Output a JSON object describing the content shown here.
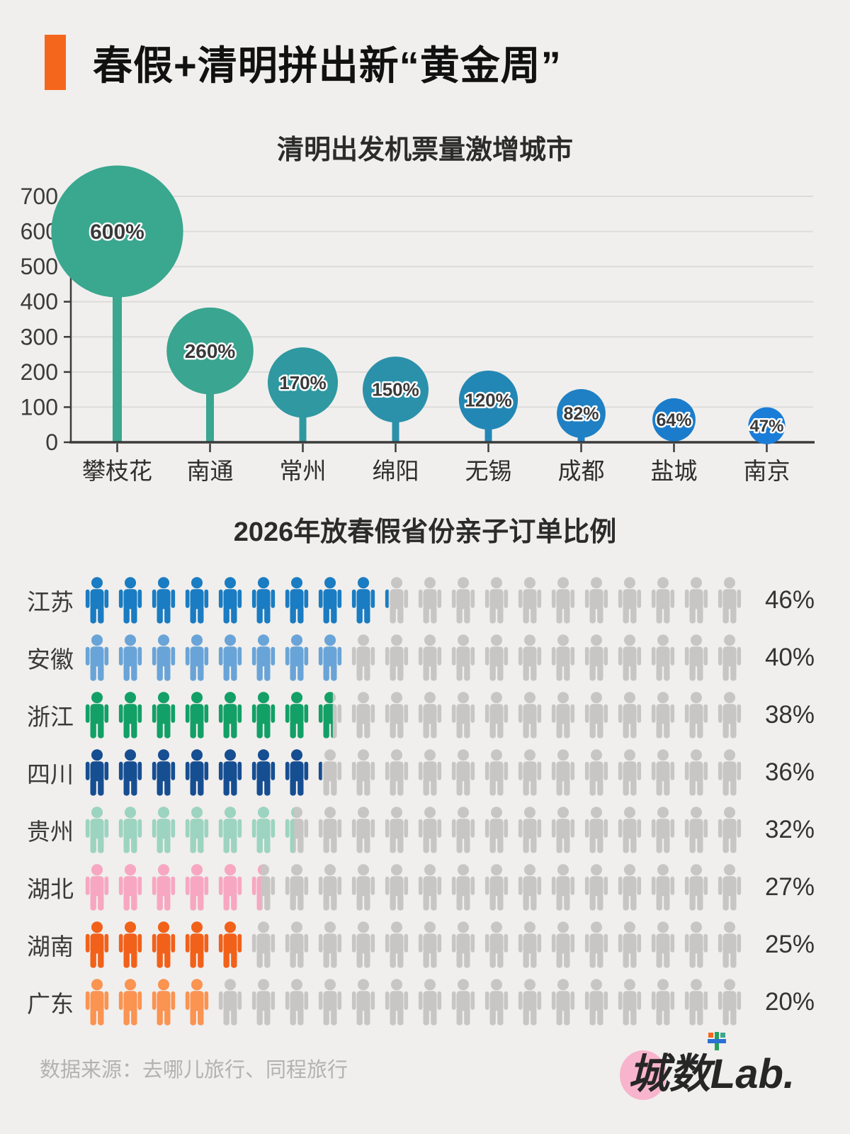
{
  "page": {
    "background": "#f0efed",
    "accent_color": "#f5661d"
  },
  "header": {
    "title": "春假+清明拼出新“黄金周”"
  },
  "chart_data": [
    {
      "type": "bar",
      "subtype": "lollipop-bubble",
      "title": "清明出发机票量激增城市",
      "categories": [
        "攀枝花",
        "南通",
        "常州",
        "绵阳",
        "无锡",
        "成都",
        "盐城",
        "南京"
      ],
      "values": [
        600,
        260,
        170,
        150,
        120,
        82,
        64,
        47
      ],
      "value_labels": [
        "600%",
        "260%",
        "170%",
        "150%",
        "120%",
        "82%",
        "64%",
        "47%"
      ],
      "bubble_colors": [
        "#3aa78f",
        "#3aa590",
        "#2f98a0",
        "#2b91aa",
        "#2387b5",
        "#1f80c3",
        "#1b7ccb",
        "#1a7dd8"
      ],
      "ylabel": "",
      "xlabel": "",
      "ylim": [
        0,
        700
      ],
      "yticks": [
        0,
        100,
        200,
        300,
        400,
        500,
        600,
        700
      ],
      "grid": true,
      "grid_color": "#dcdcda",
      "axis_color": "#3b3b3b",
      "label_text_color": "#3a3a3a"
    },
    {
      "type": "pictogram",
      "title": "2026年放春假省份亲子订单比例",
      "icons_per_row": 20,
      "percent_per_icon": 5,
      "empty_icon_color": "#c7c6c5",
      "icon": "person-icon",
      "rows": [
        {
          "label": "江苏",
          "value": 46,
          "display": "46%",
          "color": "#1a7cc2"
        },
        {
          "label": "安徽",
          "value": 40,
          "display": "40%",
          "color": "#69a4d8"
        },
        {
          "label": "浙江",
          "value": 38,
          "display": "38%",
          "color": "#12a066"
        },
        {
          "label": "四川",
          "value": 36,
          "display": "36%",
          "color": "#164e92"
        },
        {
          "label": "贵州",
          "value": 32,
          "display": "32%",
          "color": "#9cd4c1"
        },
        {
          "label": "湖北",
          "value": 27,
          "display": "27%",
          "color": "#f8a7c3"
        },
        {
          "label": "湖南",
          "value": 25,
          "display": "25%",
          "color": "#f2611a"
        },
        {
          "label": "广东",
          "value": 20,
          "display": "20%",
          "color": "#fb9351"
        }
      ]
    }
  ],
  "footer": {
    "source": "数据来源：去哪儿旅行、同程旅行",
    "logo": "城数Lab."
  }
}
